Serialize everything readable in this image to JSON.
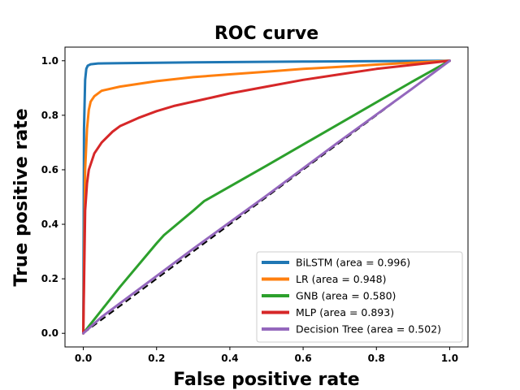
{
  "chart_data": {
    "type": "line",
    "title": "ROC curve",
    "xlabel": "False positive rate",
    "ylabel": "True positive rate",
    "xlim": [
      -0.05,
      1.05
    ],
    "ylim": [
      -0.05,
      1.05
    ],
    "xticks": [
      "0.0",
      "0.2",
      "0.4",
      "0.6",
      "0.8",
      "1.0"
    ],
    "yticks": [
      "0.0",
      "0.2",
      "0.4",
      "0.6",
      "0.8",
      "1.0"
    ],
    "grid": false,
    "legend_position": "lower-right",
    "diagonal": {
      "x": [
        0,
        1
      ],
      "y": [
        0,
        1
      ],
      "color": "#000000",
      "style": "dashed"
    },
    "series": [
      {
        "name": "BiLSTM (area = 0.996)",
        "color": "#1f77b4",
        "x": [
          0,
          0.002,
          0.005,
          0.008,
          0.012,
          0.02,
          0.04,
          0.1,
          0.3,
          0.6,
          1.0
        ],
        "y": [
          0,
          0.75,
          0.93,
          0.97,
          0.982,
          0.987,
          0.99,
          0.991,
          0.994,
          0.997,
          1.0
        ]
      },
      {
        "name": "LR (area = 0.948)",
        "color": "#ff7f0e",
        "x": [
          0,
          0.005,
          0.01,
          0.015,
          0.02,
          0.03,
          0.05,
          0.1,
          0.2,
          0.3,
          0.4,
          0.5,
          0.6,
          0.7,
          0.8,
          0.9,
          1.0
        ],
        "y": [
          0,
          0.6,
          0.75,
          0.82,
          0.85,
          0.87,
          0.89,
          0.905,
          0.925,
          0.94,
          0.95,
          0.96,
          0.97,
          0.978,
          0.986,
          0.993,
          1.0
        ]
      },
      {
        "name": "GNB (area = 0.580)",
        "color": "#2ca02c",
        "x": [
          0,
          0.1,
          0.2,
          0.22,
          0.3,
          0.33,
          0.5,
          0.7,
          0.9,
          1.0
        ],
        "y": [
          0,
          0.17,
          0.33,
          0.36,
          0.45,
          0.485,
          0.615,
          0.77,
          0.925,
          1.0
        ]
      },
      {
        "name": "MLP (area = 0.893)",
        "color": "#d62728",
        "x": [
          0,
          0.005,
          0.01,
          0.015,
          0.02,
          0.03,
          0.05,
          0.08,
          0.1,
          0.15,
          0.2,
          0.25,
          0.3,
          0.35,
          0.4,
          0.5,
          0.6,
          0.7,
          0.8,
          0.9,
          1.0
        ],
        "y": [
          0,
          0.45,
          0.55,
          0.6,
          0.62,
          0.66,
          0.7,
          0.74,
          0.76,
          0.79,
          0.815,
          0.835,
          0.85,
          0.865,
          0.88,
          0.905,
          0.93,
          0.95,
          0.97,
          0.985,
          1.0
        ]
      },
      {
        "name": "Decision Tree (area = 0.502)",
        "color": "#9467bd",
        "x": [
          0,
          0.05,
          0.1,
          0.12,
          0.3,
          0.5,
          0.7,
          0.9,
          1.0
        ],
        "y": [
          0,
          0.06,
          0.11,
          0.13,
          0.31,
          0.505,
          0.705,
          0.9,
          1.0
        ]
      }
    ]
  }
}
